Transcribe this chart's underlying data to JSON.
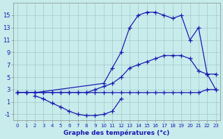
{
  "line1_x": [
    0,
    1,
    2,
    3,
    4,
    5,
    6,
    7,
    8,
    9,
    10,
    11,
    12,
    13,
    14,
    15,
    16,
    17,
    18,
    19,
    20,
    21,
    22,
    23
  ],
  "line1_y": [
    2.5,
    2.5,
    2.5,
    2.5,
    2.5,
    2.5,
    2.5,
    2.5,
    2.5,
    2.5,
    2.5,
    2.5,
    2.5,
    2.5,
    2.5,
    2.5,
    2.5,
    2.5,
    2.5,
    2.5,
    2.5,
    2.5,
    3.0,
    3.0
  ],
  "line2_x": [
    2,
    3,
    4,
    5,
    6,
    7,
    8,
    9,
    10,
    11,
    12
  ],
  "line2_y": [
    2.0,
    1.5,
    0.8,
    0.2,
    -0.5,
    -1.0,
    -1.2,
    -1.2,
    -1.0,
    -0.5,
    1.5
  ],
  "line3_x": [
    0,
    1,
    2,
    3,
    4,
    5,
    6,
    7,
    8,
    9,
    10,
    11,
    12,
    13,
    14,
    15,
    16,
    17,
    18,
    19,
    20,
    21,
    22,
    23
  ],
  "line3_y": [
    2.5,
    2.5,
    2.5,
    2.5,
    2.5,
    2.5,
    2.5,
    2.5,
    2.5,
    3.0,
    3.5,
    4.0,
    5.0,
    6.5,
    7.0,
    7.5,
    8.0,
    8.5,
    8.5,
    8.5,
    8.0,
    6.0,
    5.5,
    5.5
  ],
  "line4_x": [
    0,
    1,
    2,
    10,
    11,
    12,
    13,
    14,
    15,
    16,
    17,
    18,
    19,
    20,
    21,
    22,
    23
  ],
  "line4_y": [
    2.5,
    2.5,
    2.5,
    4.0,
    6.5,
    9.0,
    13.0,
    15.0,
    15.5,
    15.5,
    15.0,
    14.5,
    15.0,
    11.0,
    13.0,
    5.5,
    3.0
  ],
  "line_color": "#1919b0",
  "bg_color": "#c8ecec",
  "grid_color": "#a0c8c8",
  "xlabel": "Graphe des températures (°c)",
  "yticks": [
    -1,
    1,
    3,
    5,
    7,
    9,
    11,
    13,
    15
  ],
  "xticks": [
    0,
    1,
    2,
    3,
    4,
    5,
    6,
    7,
    8,
    9,
    10,
    11,
    12,
    13,
    14,
    15,
    16,
    17,
    18,
    19,
    20,
    21,
    22,
    23
  ],
  "ylim": [
    -2,
    17
  ],
  "xlim": [
    -0.5,
    23.5
  ]
}
